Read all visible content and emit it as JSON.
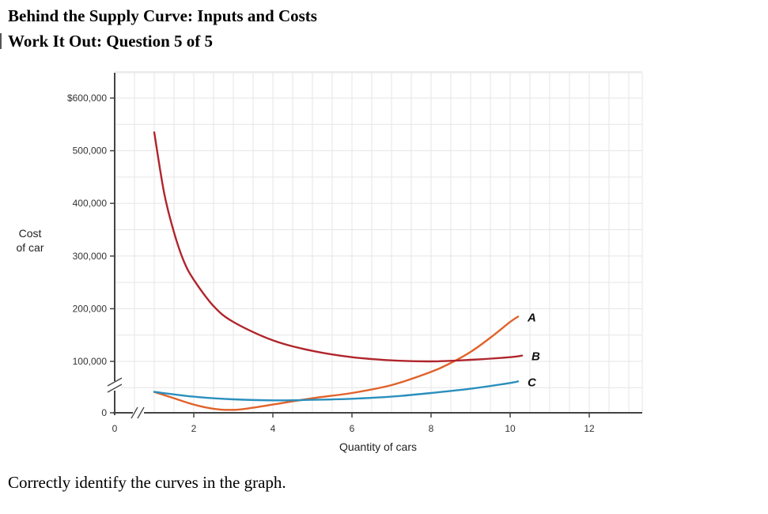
{
  "page": {
    "title": "Behind the Supply Curve: Inputs and Costs",
    "subtitle": "Work It Out: Question 5 of 5",
    "question": "Correctly identify the curves in the graph."
  },
  "chart_data": {
    "type": "line",
    "title": "",
    "xlabel": "Quantity of cars",
    "ylabel_lines": [
      "Cost",
      "of car"
    ],
    "xlim": [
      0,
      13
    ],
    "ylim": [
      0,
      600000
    ],
    "x_ticks": [
      {
        "value": 0,
        "label": "0"
      },
      {
        "value": 2,
        "label": "2"
      },
      {
        "value": 4,
        "label": "4"
      },
      {
        "value": 6,
        "label": "6"
      },
      {
        "value": 8,
        "label": "8"
      },
      {
        "value": 10,
        "label": "10"
      },
      {
        "value": 12,
        "label": "12"
      }
    ],
    "y_ticks": [
      {
        "value": 0,
        "label": "0"
      },
      {
        "value": 100000,
        "label": "100,000"
      },
      {
        "value": 200000,
        "label": "200,000"
      },
      {
        "value": 300000,
        "label": "300,000"
      },
      {
        "value": 400000,
        "label": "400,000"
      },
      {
        "value": 500000,
        "label": "500,000"
      },
      {
        "value": 600000,
        "label": "$600,000"
      }
    ],
    "grid": true,
    "axis_break": true,
    "series": [
      {
        "name": "A",
        "color": "#e0622a",
        "x": [
          1,
          1.5,
          2,
          2.5,
          3,
          3.5,
          4,
          5,
          6,
          7,
          8,
          8.5,
          9,
          9.5,
          10,
          10.2
        ],
        "y": [
          42000,
          30000,
          18000,
          10000,
          8000,
          12000,
          18000,
          30000,
          40000,
          55000,
          80000,
          97000,
          118000,
          145000,
          175000,
          185000
        ]
      },
      {
        "name": "B",
        "color": "#b0252c",
        "x": [
          1,
          1.25,
          1.5,
          1.75,
          2,
          2.5,
          3,
          4,
          5,
          6,
          7,
          8,
          9,
          10,
          10.3
        ],
        "y": [
          535000,
          420000,
          345000,
          290000,
          255000,
          205000,
          175000,
          140000,
          120000,
          108000,
          102000,
          100000,
          103000,
          108000,
          111000
        ]
      },
      {
        "name": "C",
        "color": "#2a8fbd",
        "x": [
          1,
          2,
          3,
          4,
          5,
          6,
          7,
          8,
          9,
          10,
          10.2
        ],
        "y": [
          42000,
          33000,
          28000,
          26000,
          27000,
          29000,
          33000,
          40000,
          48000,
          59000,
          62000
        ]
      }
    ]
  }
}
